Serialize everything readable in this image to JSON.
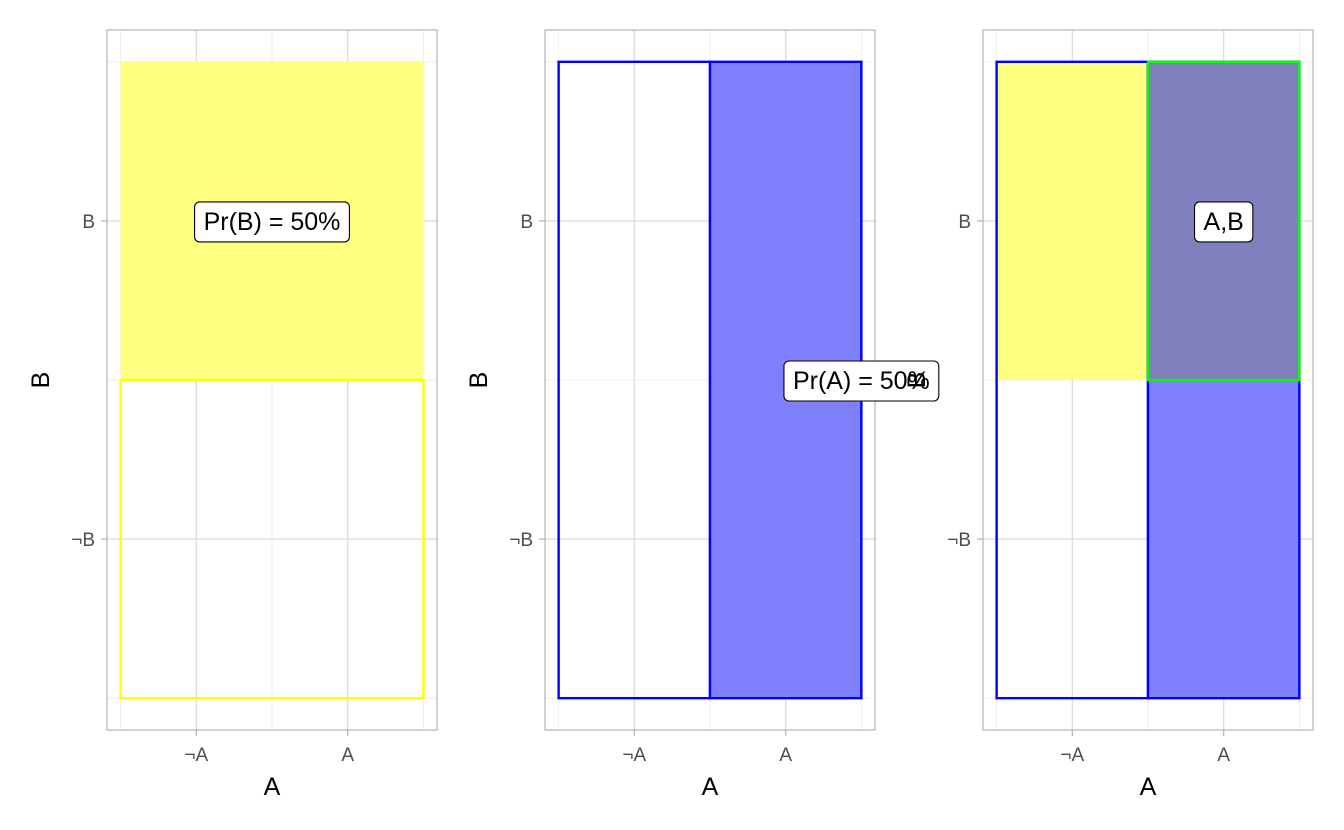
{
  "chart_data": [
    {
      "type": "area",
      "xlabel": "A",
      "ylabel": "B",
      "x_categories": [
        "¬A",
        "A"
      ],
      "y_categories": [
        "¬B",
        "B"
      ],
      "grid": true,
      "regions": [
        {
          "xmin": 0,
          "xmax": 1,
          "ymin": 0.5,
          "ymax": 1,
          "fill": "#FFFF80",
          "stroke": "none"
        },
        {
          "xmin": 0,
          "xmax": 1,
          "ymin": 0,
          "ymax": 0.5,
          "fill": "none",
          "stroke": "#FFFF00"
        }
      ],
      "annotations": [
        {
          "label": "Pr(B) = 50%",
          "x": 0.5,
          "y": 0.75
        }
      ]
    },
    {
      "type": "area",
      "xlabel": "A",
      "ylabel": "B",
      "x_categories": [
        "¬A",
        "A"
      ],
      "y_categories": [
        "¬B",
        "B"
      ],
      "grid": true,
      "regions": [
        {
          "xmin": 0,
          "xmax": 0.5,
          "ymin": 0,
          "ymax": 1,
          "fill": "none",
          "stroke": "#0000FF"
        },
        {
          "xmin": 0.5,
          "xmax": 1,
          "ymin": 0,
          "ymax": 1,
          "fill": "#8080FF",
          "stroke": "#0000FF"
        }
      ],
      "annotations": [
        {
          "label": "Pr(A) = 50%",
          "x": 1,
          "y": 0.5
        }
      ]
    },
    {
      "type": "area",
      "xlabel": "A",
      "ylabel": "B",
      "x_categories": [
        "¬A",
        "A"
      ],
      "y_categories": [
        "¬B",
        "B"
      ],
      "grid": true,
      "regions": [
        {
          "xmin": 0,
          "xmax": 0.5,
          "ymin": 0.5,
          "ymax": 1,
          "fill": "#FFFF80",
          "stroke": "none"
        },
        {
          "xmin": 0,
          "xmax": 0.5,
          "ymin": 0,
          "ymax": 1,
          "fill": "none",
          "stroke": "#0000FF"
        },
        {
          "xmin": 0.5,
          "xmax": 1,
          "ymin": 0,
          "ymax": 1,
          "fill": "#8080FF",
          "stroke": "#0000FF"
        },
        {
          "xmin": 0.5,
          "xmax": 1,
          "ymin": 0.5,
          "ymax": 1,
          "fill": "#8080BF",
          "stroke": "#00FF00"
        }
      ],
      "annotations": [
        {
          "label": "A,B",
          "x": 0.75,
          "y": 0.75
        }
      ]
    }
  ]
}
